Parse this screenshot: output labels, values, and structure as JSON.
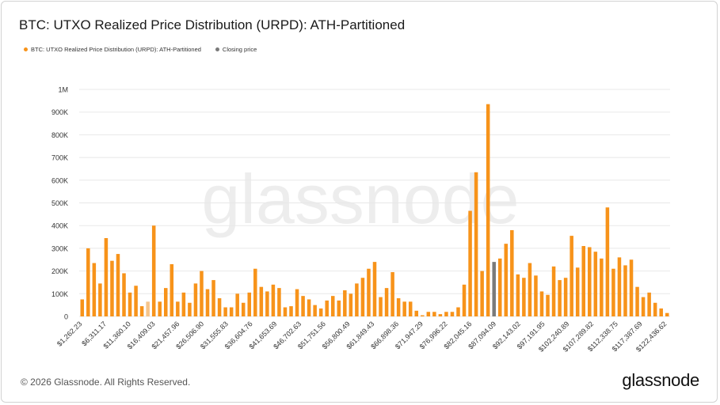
{
  "title": "BTC: UTXO Realized Price Distribution (URPD): ATH-Partitioned",
  "legend": {
    "series": "BTC: UTXO Realized Price Distribution (URPD): ATH-Partitioned",
    "closing": "Closing price"
  },
  "watermark": "glassnode",
  "footer": {
    "copyright": "© 2026 Glassnode. All Rights Reserved.",
    "brand": "glassnode"
  },
  "colors": {
    "bar": "#f7931a",
    "bar_light": "#f5c48a",
    "closing": "#7a7a7a",
    "grid": "#e8e8e8",
    "text": "#333333"
  },
  "chart_data": {
    "type": "bar",
    "ylim": [
      0,
      1000000
    ],
    "y_ticks": [
      0,
      100000,
      200000,
      300000,
      400000,
      500000,
      600000,
      700000,
      800000,
      900000,
      1000000
    ],
    "y_tick_labels": [
      "0",
      "100K",
      "200K",
      "300K",
      "400K",
      "500K",
      "600K",
      "700K",
      "800K",
      "900K",
      "1M"
    ],
    "x_tick_labels": [
      "$1,262.23",
      "$6,311.17",
      "$11,360.10",
      "$16,409.03",
      "$21,457.96",
      "$26,506.90",
      "$31,555.83",
      "$36,604.76",
      "$41,653.69",
      "$46,702.63",
      "$51,751.56",
      "$56,800.49",
      "$61,849.43",
      "$66,898.36",
      "$71,947.29",
      "$76,996.22",
      "$82,045.16",
      "$87,094.09",
      "$92,143.02",
      "$97,191.95",
      "$102,240.89",
      "$107,289.82",
      "$112,338.75",
      "$117,387.69",
      "$122,436.62"
    ],
    "values": [
      75000,
      300000,
      235000,
      145000,
      345000,
      245000,
      275000,
      190000,
      105000,
      135000,
      45000,
      65000,
      400000,
      65000,
      125000,
      230000,
      65000,
      105000,
      60000,
      145000,
      200000,
      120000,
      160000,
      80000,
      40000,
      40000,
      100000,
      60000,
      105000,
      210000,
      130000,
      110000,
      140000,
      125000,
      40000,
      45000,
      120000,
      90000,
      75000,
      50000,
      35000,
      70000,
      90000,
      70000,
      115000,
      100000,
      145000,
      170000,
      210000,
      240000,
      85000,
      125000,
      195000,
      80000,
      65000,
      65000,
      25000,
      5000,
      20000,
      20000,
      10000,
      20000,
      20000,
      40000,
      140000,
      465000,
      635000,
      200000,
      935000,
      240000,
      255000,
      320000,
      380000,
      185000,
      170000,
      235000,
      180000,
      110000,
      95000,
      220000,
      160000,
      170000,
      355000,
      215000,
      310000,
      305000,
      285000,
      255000,
      480000,
      210000,
      260000,
      225000,
      250000,
      130000,
      85000,
      105000,
      60000,
      35000,
      15000
    ],
    "highlight_light_index": 11,
    "closing_index": 69
  }
}
